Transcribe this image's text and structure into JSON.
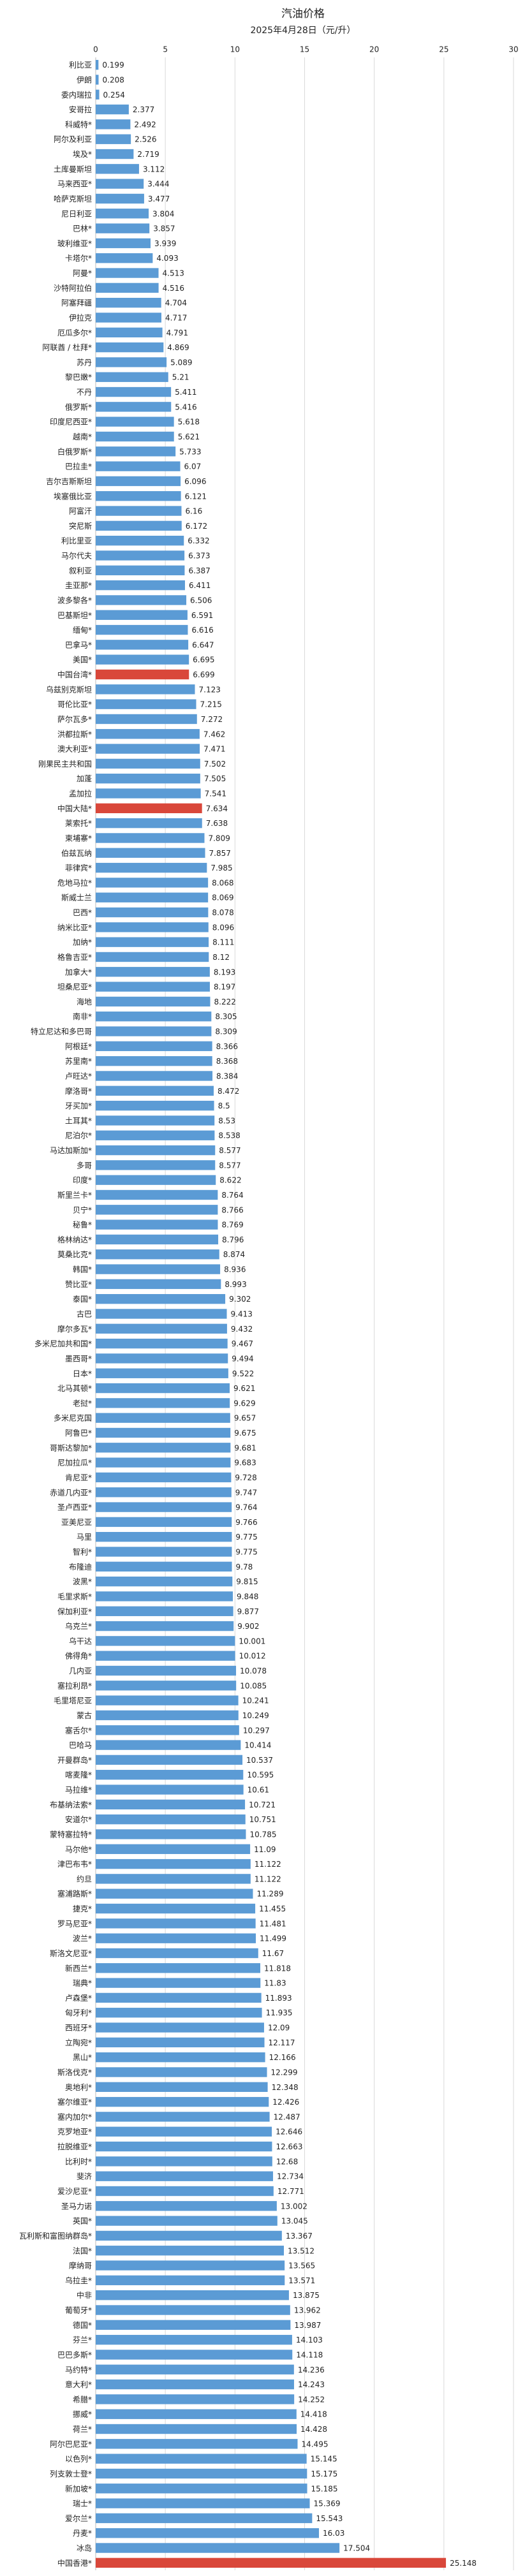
{
  "chart_data": {
    "type": "barh",
    "title": "汽油价格",
    "subtitle": "2025年4月28日（元/升）",
    "categories": [
      "利比亚",
      "伊朗",
      "委内瑞拉",
      "安哥拉",
      "科威特*",
      "阿尔及利亚",
      "埃及*",
      "土库曼斯坦",
      "马来西亚*",
      "哈萨克斯坦",
      "尼日利亚",
      "巴林*",
      "玻利维亚*",
      "卡塔尔*",
      "阿曼*",
      "沙特阿拉伯",
      "阿塞拜疆",
      "伊拉克",
      "厄瓜多尔*",
      "阿联酋 / 杜拜*",
      "苏丹",
      "黎巴嫩*",
      "不丹",
      "俄罗斯*",
      "印度尼西亚*",
      "越南*",
      "白俄罗斯*",
      "巴拉圭*",
      "吉尔吉斯斯坦",
      "埃塞俄比亚",
      "阿富汗",
      "突尼斯",
      "利比里亚",
      "马尔代夫",
      "叙利亚",
      "圭亚那*",
      "波多黎各*",
      "巴基斯坦*",
      "缅甸*",
      "巴拿马*",
      "美国*",
      "中国台湾*",
      "乌兹别克斯坦",
      "哥伦比亚*",
      "萨尔瓦多*",
      "洪都拉斯*",
      "澳大利亚*",
      "刚果民主共和国",
      "加蓬",
      "孟加拉",
      "中国大陆*",
      "莱索托*",
      "柬埔寨*",
      "伯兹瓦纳",
      "菲律宾*",
      "危地马拉*",
      "斯威士兰",
      "巴西*",
      "纳米比亚*",
      "加纳*",
      "格鲁吉亚*",
      "加拿大*",
      "坦桑尼亚*",
      "海地",
      "南非*",
      "特立尼达和多巴哥",
      "阿根廷*",
      "苏里南*",
      "卢旺达*",
      "摩洛哥*",
      "牙买加*",
      "土耳其*",
      "尼泊尔*",
      "马达加斯加*",
      "多哥",
      "印度*",
      "斯里兰卡*",
      "贝宁*",
      "秘鲁*",
      "格林纳达*",
      "莫桑比克*",
      "韩国*",
      "赞比亚*",
      "泰国*",
      "古巴",
      "摩尔多瓦*",
      "多米尼加共和国*",
      "墨西哥*",
      "日本*",
      "北马其顿*",
      "老挝*",
      "多米尼克国",
      "阿鲁巴*",
      "哥斯达黎加*",
      "尼加拉瓜*",
      "肯尼亚*",
      "赤道几内亚*",
      "圣卢西亚*",
      "亚美尼亚",
      "马里",
      "智利*",
      "布隆迪",
      "波黑*",
      "毛里求斯*",
      "保加利亚*",
      "乌克兰*",
      "乌干达",
      "佛得角*",
      "几内亚",
      "塞拉利昂*",
      "毛里塔尼亚",
      "蒙古",
      "塞舌尔*",
      "巴哈马",
      "开曼群岛*",
      "喀麦隆*",
      "马拉维*",
      "布基纳法索*",
      "安道尔*",
      "蒙特塞拉特*",
      "马尔他*",
      "津巴布韦*",
      "约旦",
      "塞浦路斯*",
      "捷克*",
      "罗马尼亚*",
      "波兰*",
      "斯洛文尼亚*",
      "新西兰*",
      "瑞典*",
      "卢森堡*",
      "匈牙利*",
      "西班牙*",
      "立陶宛*",
      "黑山*",
      "斯洛伐克*",
      "奥地利*",
      "塞尔维亚*",
      "塞内加尔*",
      "克罗地亚*",
      "拉脱维亚*",
      "比利时*",
      "斐济",
      "爱沙尼亚*",
      "圣马力诺",
      "英国*",
      "瓦利斯和富图纳群岛*",
      "法国*",
      "摩纳哥",
      "乌拉圭*",
      "中非",
      "葡萄牙*",
      "德国*",
      "芬兰*",
      "巴巴多斯*",
      "马约特*",
      "意大利*",
      "希腊*",
      "挪威*",
      "荷兰*",
      "阿尔巴尼亚*",
      "以色列*",
      "列支敦士登*",
      "新加坡*",
      "瑞士*",
      "爱尔兰*",
      "丹麦*",
      "冰岛",
      "中国香港*"
    ],
    "values": [
      0.199,
      0.208,
      0.254,
      2.377,
      2.492,
      2.526,
      2.719,
      3.112,
      3.444,
      3.477,
      3.804,
      3.857,
      3.939,
      4.093,
      4.513,
      4.516,
      4.704,
      4.717,
      4.791,
      4.869,
      5.089,
      5.21,
      5.411,
      5.416,
      5.618,
      5.621,
      5.733,
      6.07,
      6.096,
      6.121,
      6.16,
      6.172,
      6.332,
      6.373,
      6.387,
      6.411,
      6.506,
      6.591,
      6.616,
      6.647,
      6.695,
      6.699,
      7.123,
      7.215,
      7.272,
      7.462,
      7.471,
      7.502,
      7.505,
      7.541,
      7.634,
      7.638,
      7.809,
      7.857,
      7.985,
      8.068,
      8.069,
      8.078,
      8.096,
      8.111,
      8.12,
      8.193,
      8.197,
      8.222,
      8.305,
      8.309,
      8.366,
      8.368,
      8.384,
      8.472,
      8.5,
      8.53,
      8.538,
      8.577,
      8.577,
      8.622,
      8.764,
      8.766,
      8.769,
      8.796,
      8.874,
      8.936,
      8.993,
      9.302,
      9.413,
      9.432,
      9.467,
      9.494,
      9.522,
      9.621,
      9.629,
      9.657,
      9.675,
      9.681,
      9.683,
      9.728,
      9.747,
      9.764,
      9.766,
      9.775,
      9.775,
      9.78,
      9.815,
      9.848,
      9.877,
      9.902,
      10.001,
      10.012,
      10.078,
      10.085,
      10.241,
      10.249,
      10.297,
      10.414,
      10.537,
      10.595,
      10.61,
      10.721,
      10.751,
      10.785,
      11.09,
      11.122,
      11.122,
      11.289,
      11.455,
      11.481,
      11.499,
      11.67,
      11.818,
      11.83,
      11.893,
      11.935,
      12.09,
      12.117,
      12.166,
      12.299,
      12.348,
      12.426,
      12.487,
      12.646,
      12.663,
      12.68,
      12.734,
      12.771,
      13.002,
      13.045,
      13.367,
      13.512,
      13.565,
      13.571,
      13.875,
      13.962,
      13.987,
      14.103,
      14.118,
      14.236,
      14.243,
      14.252,
      14.418,
      14.428,
      14.495,
      15.145,
      15.175,
      15.185,
      15.369,
      15.543,
      16.03,
      17.504,
      25.148
    ],
    "colors": [
      "#5b9bd5",
      "#5b9bd5",
      "#5b9bd5",
      "#5b9bd5",
      "#5b9bd5",
      "#5b9bd5",
      "#5b9bd5",
      "#5b9bd5",
      "#5b9bd5",
      "#5b9bd5",
      "#5b9bd5",
      "#5b9bd5",
      "#5b9bd5",
      "#5b9bd5",
      "#5b9bd5",
      "#5b9bd5",
      "#5b9bd5",
      "#5b9bd5",
      "#5b9bd5",
      "#5b9bd5",
      "#5b9bd5",
      "#5b9bd5",
      "#5b9bd5",
      "#5b9bd5",
      "#5b9bd5",
      "#5b9bd5",
      "#5b9bd5",
      "#5b9bd5",
      "#5b9bd5",
      "#5b9bd5",
      "#5b9bd5",
      "#5b9bd5",
      "#5b9bd5",
      "#5b9bd5",
      "#5b9bd5",
      "#5b9bd5",
      "#5b9bd5",
      "#5b9bd5",
      "#5b9bd5",
      "#5b9bd5",
      "#5b9bd5",
      "#d9473a",
      "#5b9bd5",
      "#5b9bd5",
      "#5b9bd5",
      "#5b9bd5",
      "#5b9bd5",
      "#5b9bd5",
      "#5b9bd5",
      "#5b9bd5",
      "#d9473a",
      "#5b9bd5",
      "#5b9bd5",
      "#5b9bd5",
      "#5b9bd5",
      "#5b9bd5",
      "#5b9bd5",
      "#5b9bd5",
      "#5b9bd5",
      "#5b9bd5",
      "#5b9bd5",
      "#5b9bd5",
      "#5b9bd5",
      "#5b9bd5",
      "#5b9bd5",
      "#5b9bd5",
      "#5b9bd5",
      "#5b9bd5",
      "#5b9bd5",
      "#5b9bd5",
      "#5b9bd5",
      "#5b9bd5",
      "#5b9bd5",
      "#5b9bd5",
      "#5b9bd5",
      "#5b9bd5",
      "#5b9bd5",
      "#5b9bd5",
      "#5b9bd5",
      "#5b9bd5",
      "#5b9bd5",
      "#5b9bd5",
      "#5b9bd5",
      "#5b9bd5",
      "#5b9bd5",
      "#5b9bd5",
      "#5b9bd5",
      "#5b9bd5",
      "#5b9bd5",
      "#5b9bd5",
      "#5b9bd5",
      "#5b9bd5",
      "#5b9bd5",
      "#5b9bd5",
      "#5b9bd5",
      "#5b9bd5",
      "#5b9bd5",
      "#5b9bd5",
      "#5b9bd5",
      "#5b9bd5",
      "#5b9bd5",
      "#5b9bd5",
      "#5b9bd5",
      "#5b9bd5",
      "#5b9bd5",
      "#5b9bd5",
      "#5b9bd5",
      "#5b9bd5",
      "#5b9bd5",
      "#5b9bd5",
      "#5b9bd5",
      "#5b9bd5",
      "#5b9bd5",
      "#5b9bd5",
      "#5b9bd5",
      "#5b9bd5",
      "#5b9bd5",
      "#5b9bd5",
      "#5b9bd5",
      "#5b9bd5",
      "#5b9bd5",
      "#5b9bd5",
      "#5b9bd5",
      "#5b9bd5",
      "#5b9bd5",
      "#5b9bd5",
      "#5b9bd5",
      "#5b9bd5",
      "#5b9bd5",
      "#5b9bd5",
      "#5b9bd5",
      "#5b9bd5",
      "#5b9bd5",
      "#5b9bd5",
      "#5b9bd5",
      "#5b9bd5",
      "#5b9bd5",
      "#5b9bd5",
      "#5b9bd5",
      "#5b9bd5",
      "#5b9bd5",
      "#5b9bd5",
      "#5b9bd5",
      "#5b9bd5",
      "#5b9bd5",
      "#5b9bd5",
      "#5b9bd5",
      "#5b9bd5",
      "#5b9bd5",
      "#5b9bd5",
      "#5b9bd5",
      "#5b9bd5",
      "#5b9bd5",
      "#5b9bd5",
      "#5b9bd5",
      "#5b9bd5",
      "#5b9bd5",
      "#5b9bd5",
      "#5b9bd5",
      "#5b9bd5",
      "#5b9bd5",
      "#5b9bd5",
      "#5b9bd5",
      "#5b9bd5",
      "#5b9bd5",
      "#5b9bd5",
      "#5b9bd5",
      "#5b9bd5",
      "#d9473a"
    ],
    "xlim": [
      0,
      30
    ],
    "xticks": [
      0,
      5,
      10,
      15,
      20,
      25,
      30
    ],
    "grid": true
  }
}
